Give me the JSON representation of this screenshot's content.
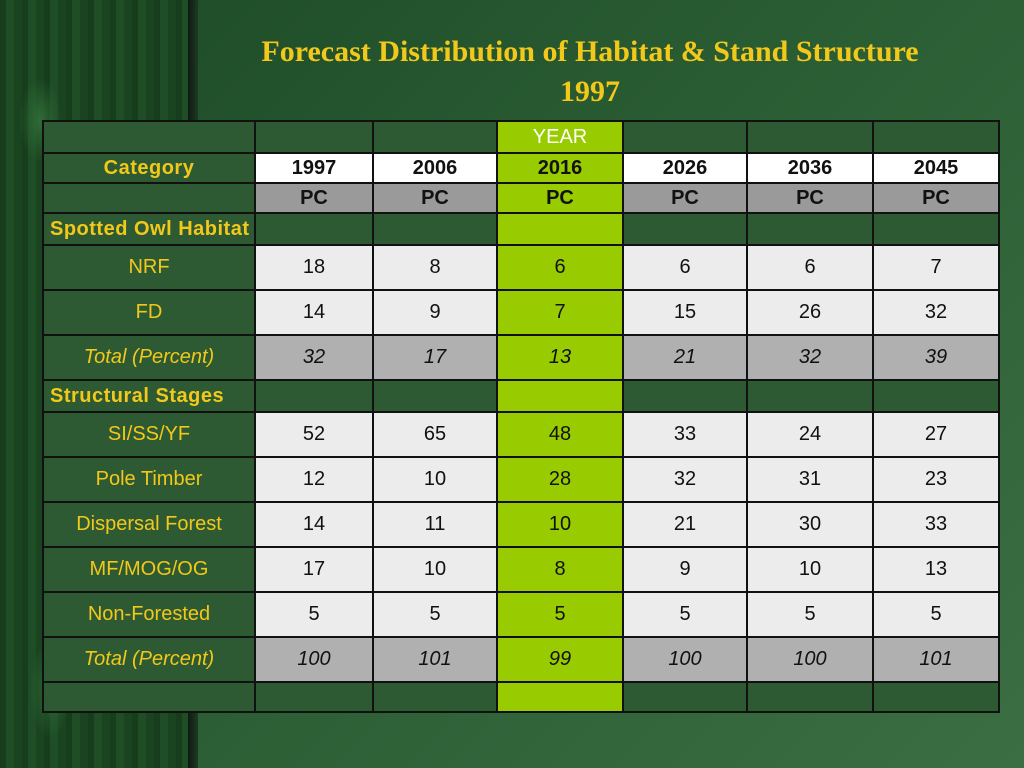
{
  "title_line1": "Forecast Distribution of Habitat & Stand Structure",
  "title_line2": "1997",
  "year_header": "YEAR",
  "category_header": "Category",
  "years": [
    "1997",
    "2006",
    "2016",
    "2026",
    "2036",
    "2045"
  ],
  "unit": "PC",
  "highlight_color": "#99cc00",
  "title_color": "#f2c81a",
  "sections": [
    {
      "label": "Spotted Owl Habitat",
      "rows": [
        {
          "label": "NRF",
          "values": [
            "18",
            "8",
            "6",
            "6",
            "6",
            "7"
          ]
        },
        {
          "label": "FD",
          "values": [
            "14",
            "9",
            "7",
            "15",
            "26",
            "32"
          ]
        }
      ],
      "total": {
        "label": "Total (Percent)",
        "values": [
          "32",
          "17",
          "13",
          "21",
          "32",
          "39"
        ]
      }
    },
    {
      "label": "Structural Stages",
      "rows": [
        {
          "label": "SI/SS/YF",
          "values": [
            "52",
            "65",
            "48",
            "33",
            "24",
            "27"
          ]
        },
        {
          "label": "Pole Timber",
          "values": [
            "12",
            "10",
            "28",
            "32",
            "31",
            "23"
          ]
        },
        {
          "label": "Dispersal Forest",
          "values": [
            "14",
            "11",
            "10",
            "21",
            "30",
            "33"
          ]
        },
        {
          "label": "MF/MOG/OG",
          "values": [
            "17",
            "10",
            "8",
            "9",
            "10",
            "13"
          ]
        },
        {
          "label": "Non-Forested",
          "values": [
            "5",
            "5",
            "5",
            "5",
            "5",
            "5"
          ]
        }
      ],
      "total": {
        "label": "Total (Percent)",
        "values": [
          "100",
          "101",
          "99",
          "100",
          "100",
          "101"
        ]
      }
    }
  ]
}
